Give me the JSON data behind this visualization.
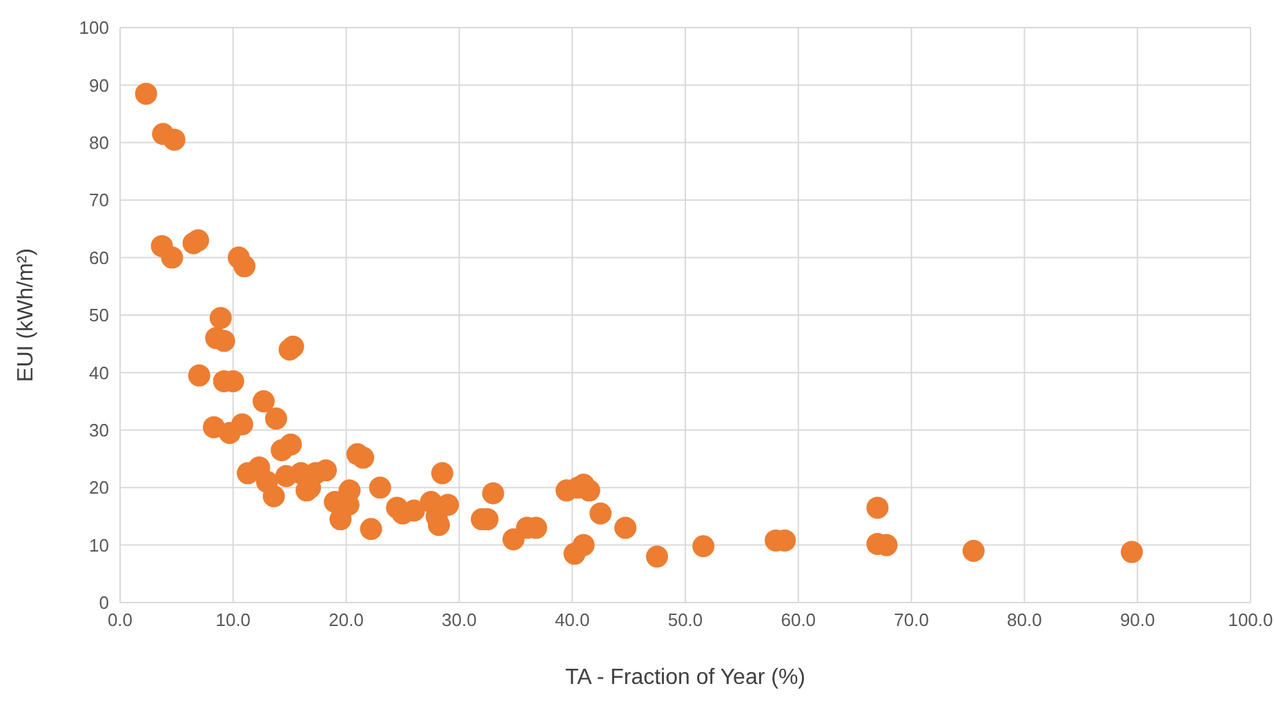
{
  "chart_data": {
    "type": "scatter",
    "xlabel": "TA - Fraction of Year (%)",
    "ylabel": "EUI (kWh/m²)",
    "x": [
      2.3,
      3.8,
      4.8,
      3.7,
      4.6,
      6.5,
      6.9,
      10.5,
      11,
      8.9,
      8.5,
      9.2,
      15,
      15.3,
      7,
      9.2,
      10,
      8.3,
      9.7,
      10.8,
      12.7,
      13.8,
      11.3,
      12.3,
      13,
      13.6,
      14.3,
      15.1,
      14.7,
      16,
      16.8,
      17.3,
      18.2,
      16.5,
      19,
      19.5,
      20.3,
      20.2,
      21,
      21.5,
      22.2,
      23,
      24.5,
      25,
      26,
      27.5,
      28,
      28.5,
      28.2,
      29,
      32,
      32.5,
      33,
      34.8,
      36,
      36.8,
      39.5,
      40.5,
      41,
      41.5,
      40.2,
      41,
      42.5,
      44.7,
      47.5,
      51.6,
      58,
      58.8,
      67,
      67,
      67.8,
      75.5,
      89.5
    ],
    "series": [
      {
        "color": "#ed7d31",
        "values": [
          88.5,
          81.5,
          80.5,
          62,
          60,
          62.5,
          63,
          60,
          58.5,
          49.5,
          46,
          45.5,
          44,
          44.5,
          39.5,
          38.5,
          38.5,
          30.5,
          29.5,
          31,
          35,
          32,
          22.5,
          23.5,
          21,
          18.5,
          26.5,
          27.5,
          22,
          22.5,
          20,
          22.5,
          23,
          19.5,
          17.5,
          14.5,
          19.5,
          17,
          25.8,
          25.2,
          12.8,
          20,
          16.5,
          15.5,
          16,
          17.5,
          15,
          22.5,
          13.5,
          17,
          14.5,
          14.5,
          19,
          11,
          13,
          13,
          19.5,
          20,
          20.5,
          19.5,
          8.5,
          10,
          15.5,
          13,
          8,
          9.8,
          10.8,
          10.8,
          16.5,
          10.2,
          10,
          9,
          8.8
        ]
      }
    ],
    "xlim": [
      0,
      100
    ],
    "xticks": [
      {
        "value": 0,
        "label": "0.0"
      },
      {
        "value": 10,
        "label": "10.0"
      },
      {
        "value": 20,
        "label": "20.0"
      },
      {
        "value": 30,
        "label": "30.0"
      },
      {
        "value": 40,
        "label": "40.0"
      },
      {
        "value": 50,
        "label": "50.0"
      },
      {
        "value": 60,
        "label": "60.0"
      },
      {
        "value": 70,
        "label": "70.0"
      },
      {
        "value": 80,
        "label": "80.0"
      },
      {
        "value": 90,
        "label": "90.0"
      },
      {
        "value": 100,
        "label": "100.0"
      }
    ],
    "ylim": [
      0,
      100
    ],
    "yticks": [
      0,
      10,
      20,
      30,
      40,
      50,
      60,
      70,
      80,
      90,
      100
    ],
    "grid": true,
    "marker": "circle"
  }
}
